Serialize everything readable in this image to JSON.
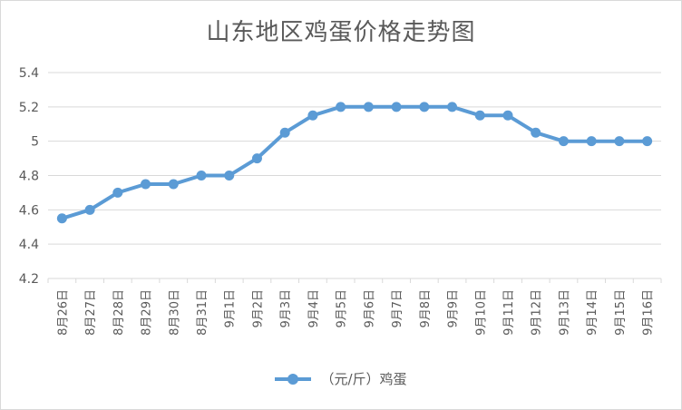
{
  "chart_data": {
    "type": "line",
    "title": "山东地区鸡蛋价格走势图",
    "categories": [
      "8月26日",
      "8月27日",
      "8月28日",
      "8月29日",
      "8月30日",
      "8月31日",
      "9月1日",
      "9月2日",
      "9月3日",
      "9月4日",
      "9月5日",
      "9月6日",
      "9月7日",
      "9月8日",
      "9月9日",
      "9月10日",
      "9月11日",
      "9月12日",
      "9月13日",
      "9月14日",
      "9月15日",
      "9月16日"
    ],
    "series": [
      {
        "name": "（元/斤）鸡蛋",
        "values": [
          4.55,
          4.6,
          4.7,
          4.75,
          4.75,
          4.8,
          4.8,
          4.9,
          5.05,
          5.15,
          5.2,
          5.2,
          5.2,
          5.2,
          5.2,
          5.15,
          5.15,
          5.05,
          5.0,
          5.0,
          5.0,
          5.0
        ],
        "color": "#5b9bd5"
      }
    ],
    "yticks": [
      "4.2",
      "4.4",
      "4.6",
      "4.8",
      "5",
      "5.2",
      "5.4"
    ],
    "ylim": [
      4.2,
      5.4
    ],
    "grid": true,
    "legend": "bottom",
    "xlabel": "",
    "ylabel": ""
  }
}
